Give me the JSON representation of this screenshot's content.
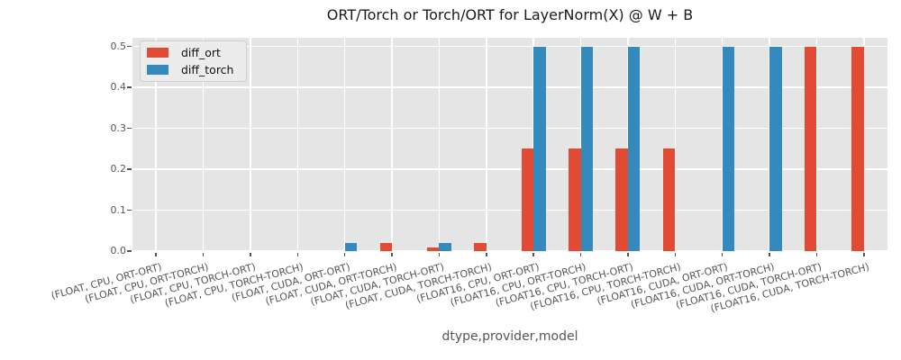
{
  "figure": {
    "title": "ORT/Torch or Torch/ORT for LayerNorm(X) @ W + B",
    "xlabel": "dtype,provider,model"
  },
  "legend": {
    "items": [
      {
        "label": "diff_ort",
        "color": "#E24A33"
      },
      {
        "label": "diff_torch",
        "color": "#348ABD"
      }
    ]
  },
  "chart_data": {
    "type": "bar",
    "title": "ORT/Torch or Torch/ORT for LayerNorm(X) @ W + B",
    "xlabel": "dtype,provider,model",
    "ylabel": "",
    "categories": [
      "(FLOAT, CPU, ORT-ORT)",
      "(FLOAT, CPU, ORT-TORCH)",
      "(FLOAT, CPU, TORCH-ORT)",
      "(FLOAT, CPU, TORCH-TORCH)",
      "(FLOAT, CUDA, ORT-ORT)",
      "(FLOAT, CUDA, ORT-TORCH)",
      "(FLOAT, CUDA, TORCH-ORT)",
      "(FLOAT, CUDA, TORCH-TORCH)",
      "(FLOAT16, CPU, ORT-ORT)",
      "(FLOAT16, CPU, ORT-TORCH)",
      "(FLOAT16, CPU, TORCH-ORT)",
      "(FLOAT16, CPU, TORCH-TORCH)",
      "(FLOAT16, CUDA, ORT-ORT)",
      "(FLOAT16, CUDA, ORT-TORCH)",
      "(FLOAT16, CUDA, TORCH-ORT)",
      "(FLOAT16, CUDA, TORCH-TORCH)"
    ],
    "series": [
      {
        "name": "diff_ort",
        "color": "#E24A33",
        "values": [
          0,
          0,
          0,
          0,
          0,
          0.02,
          0.008,
          0.02,
          0.25,
          0.25,
          0.25,
          0.25,
          0,
          0,
          0.5,
          0.5
        ]
      },
      {
        "name": "diff_torch",
        "color": "#348ABD",
        "values": [
          0,
          0,
          0,
          0,
          0.02,
          0,
          0.02,
          0,
          0.5,
          0.5,
          0.5,
          0,
          0.5,
          0.5,
          0,
          0
        ]
      }
    ],
    "yticks": [
      0.0,
      0.1,
      0.2,
      0.3,
      0.4,
      0.5
    ],
    "ylim": [
      0,
      0.52
    ],
    "grid": true,
    "legend_position": "upper left",
    "plot_background": "#E5E5E5",
    "grid_color": "#FFFFFF",
    "tick_color": "#555555"
  }
}
